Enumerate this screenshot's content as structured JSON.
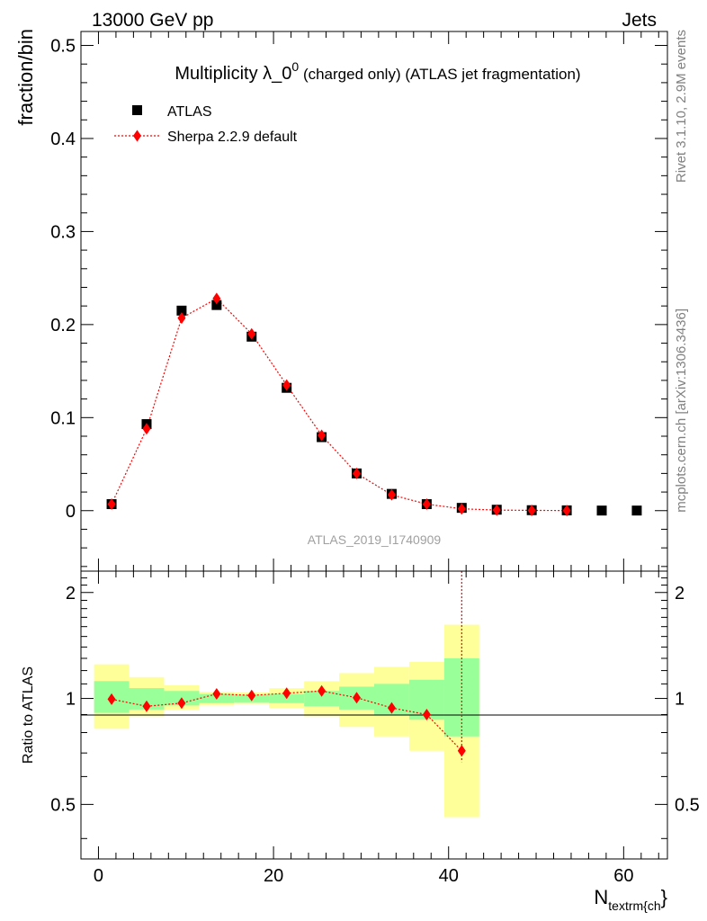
{
  "header": {
    "energy_label": "13000 GeV pp",
    "category_label": "Jets"
  },
  "side_labels": {
    "rivet": "Rivet 3.1.10,  2.9M events",
    "source": "mcplots.cern.ch [arXiv:1306.3436]"
  },
  "colors": {
    "data": "#000000",
    "mc": "#ff0000",
    "band_inner": "#99ff99",
    "band_outer": "#ffff99"
  },
  "chart_data": [
    {
      "type": "scatter",
      "panel": "main",
      "title_main": "Multiplicity λ_0",
      "title_sup": "0",
      "title_rest": " (charged only) (ATLAS jet fragmentation)",
      "ylabel": "fraction/bin",
      "xlim": [
        -2,
        65
      ],
      "ylim": [
        -0.065,
        0.515
      ],
      "yticks": [
        0,
        0.1,
        0.2,
        0.3,
        0.4,
        0.5
      ],
      "ytick_labels": [
        "0",
        "0.1",
        "0.2",
        "0.3",
        "0.4",
        "0.5"
      ],
      "watermark": "ATLAS_2019_I1740909",
      "legend_position": "top-left",
      "series": [
        {
          "name": "ATLAS",
          "marker": "square",
          "x": [
            1.5,
            5.5,
            9.5,
            13.5,
            17.5,
            21.5,
            25.5,
            29.5,
            33.5,
            37.5,
            41.5,
            45.5,
            49.5,
            53.5,
            57.5,
            61.5
          ],
          "values": [
            0.007,
            0.093,
            0.215,
            0.221,
            0.187,
            0.132,
            0.079,
            0.04,
            0.018,
            0.007,
            0.003,
            0.001,
            0.0005,
            0.0003,
            0.0001,
            0.0001
          ]
        },
        {
          "name": "Sherpa 2.2.9 default",
          "marker": "diamond",
          "x": [
            1.5,
            5.5,
            9.5,
            13.5,
            17.5,
            21.5,
            25.5,
            29.5,
            33.5,
            37.5,
            41.5,
            45.5,
            49.5,
            53.5
          ],
          "values": [
            0.007,
            0.088,
            0.207,
            0.228,
            0.19,
            0.135,
            0.081,
            0.04,
            0.017,
            0.007,
            0.002,
            0.0006,
            0.0003,
            0.0001
          ]
        }
      ]
    },
    {
      "type": "scatter",
      "panel": "ratio",
      "ylabel": "Ratio to ATLAS",
      "xlabel": "N",
      "xlabel_sub": "textrm{ch",
      "xlabel_tail": "}",
      "xlim": [
        -2,
        65
      ],
      "ylim": [
        0.35,
        2.3
      ],
      "yticks": [
        0.5,
        1,
        2
      ],
      "ytick_labels": [
        "0.5",
        "1",
        "2"
      ],
      "xticks": [
        0,
        20,
        40,
        60
      ],
      "xtick_labels": [
        "0",
        "20",
        "40",
        "60"
      ],
      "bins": [
        [
          -0.5,
          3.5
        ],
        [
          3.5,
          7.5
        ],
        [
          7.5,
          11.5
        ],
        [
          11.5,
          15.5
        ],
        [
          15.5,
          19.5
        ],
        [
          19.5,
          23.5
        ],
        [
          23.5,
          27.5
        ],
        [
          27.5,
          31.5
        ],
        [
          31.5,
          35.5
        ],
        [
          35.5,
          39.5
        ],
        [
          39.5,
          43.5
        ]
      ],
      "band_inner": [
        [
          0.91,
          1.12
        ],
        [
          0.93,
          1.07
        ],
        [
          0.955,
          1.05
        ],
        [
          0.97,
          1.03
        ],
        [
          0.975,
          1.025
        ],
        [
          0.97,
          1.03
        ],
        [
          0.95,
          1.05
        ],
        [
          0.93,
          1.08
        ],
        [
          0.9,
          1.1
        ],
        [
          0.87,
          1.13
        ],
        [
          0.78,
          1.3
        ]
      ],
      "band_outer": [
        [
          0.82,
          1.25
        ],
        [
          0.89,
          1.15
        ],
        [
          0.93,
          1.09
        ],
        [
          0.955,
          1.045
        ],
        [
          0.965,
          1.04
        ],
        [
          0.94,
          1.07
        ],
        [
          0.89,
          1.12
        ],
        [
          0.83,
          1.18
        ],
        [
          0.78,
          1.23
        ],
        [
          0.71,
          1.27
        ],
        [
          0.46,
          1.62
        ]
      ],
      "series": [
        {
          "name": "Sherpa 2.2.9 default",
          "x": [
            1.5,
            5.5,
            9.5,
            13.5,
            17.5,
            21.5,
            25.5,
            29.5,
            33.5,
            37.5,
            41.5
          ],
          "values": [
            0.995,
            0.95,
            0.97,
            1.03,
            1.02,
            1.035,
            1.05,
            1.005,
            0.94,
            0.9,
            0.71
          ]
        }
      ]
    }
  ]
}
